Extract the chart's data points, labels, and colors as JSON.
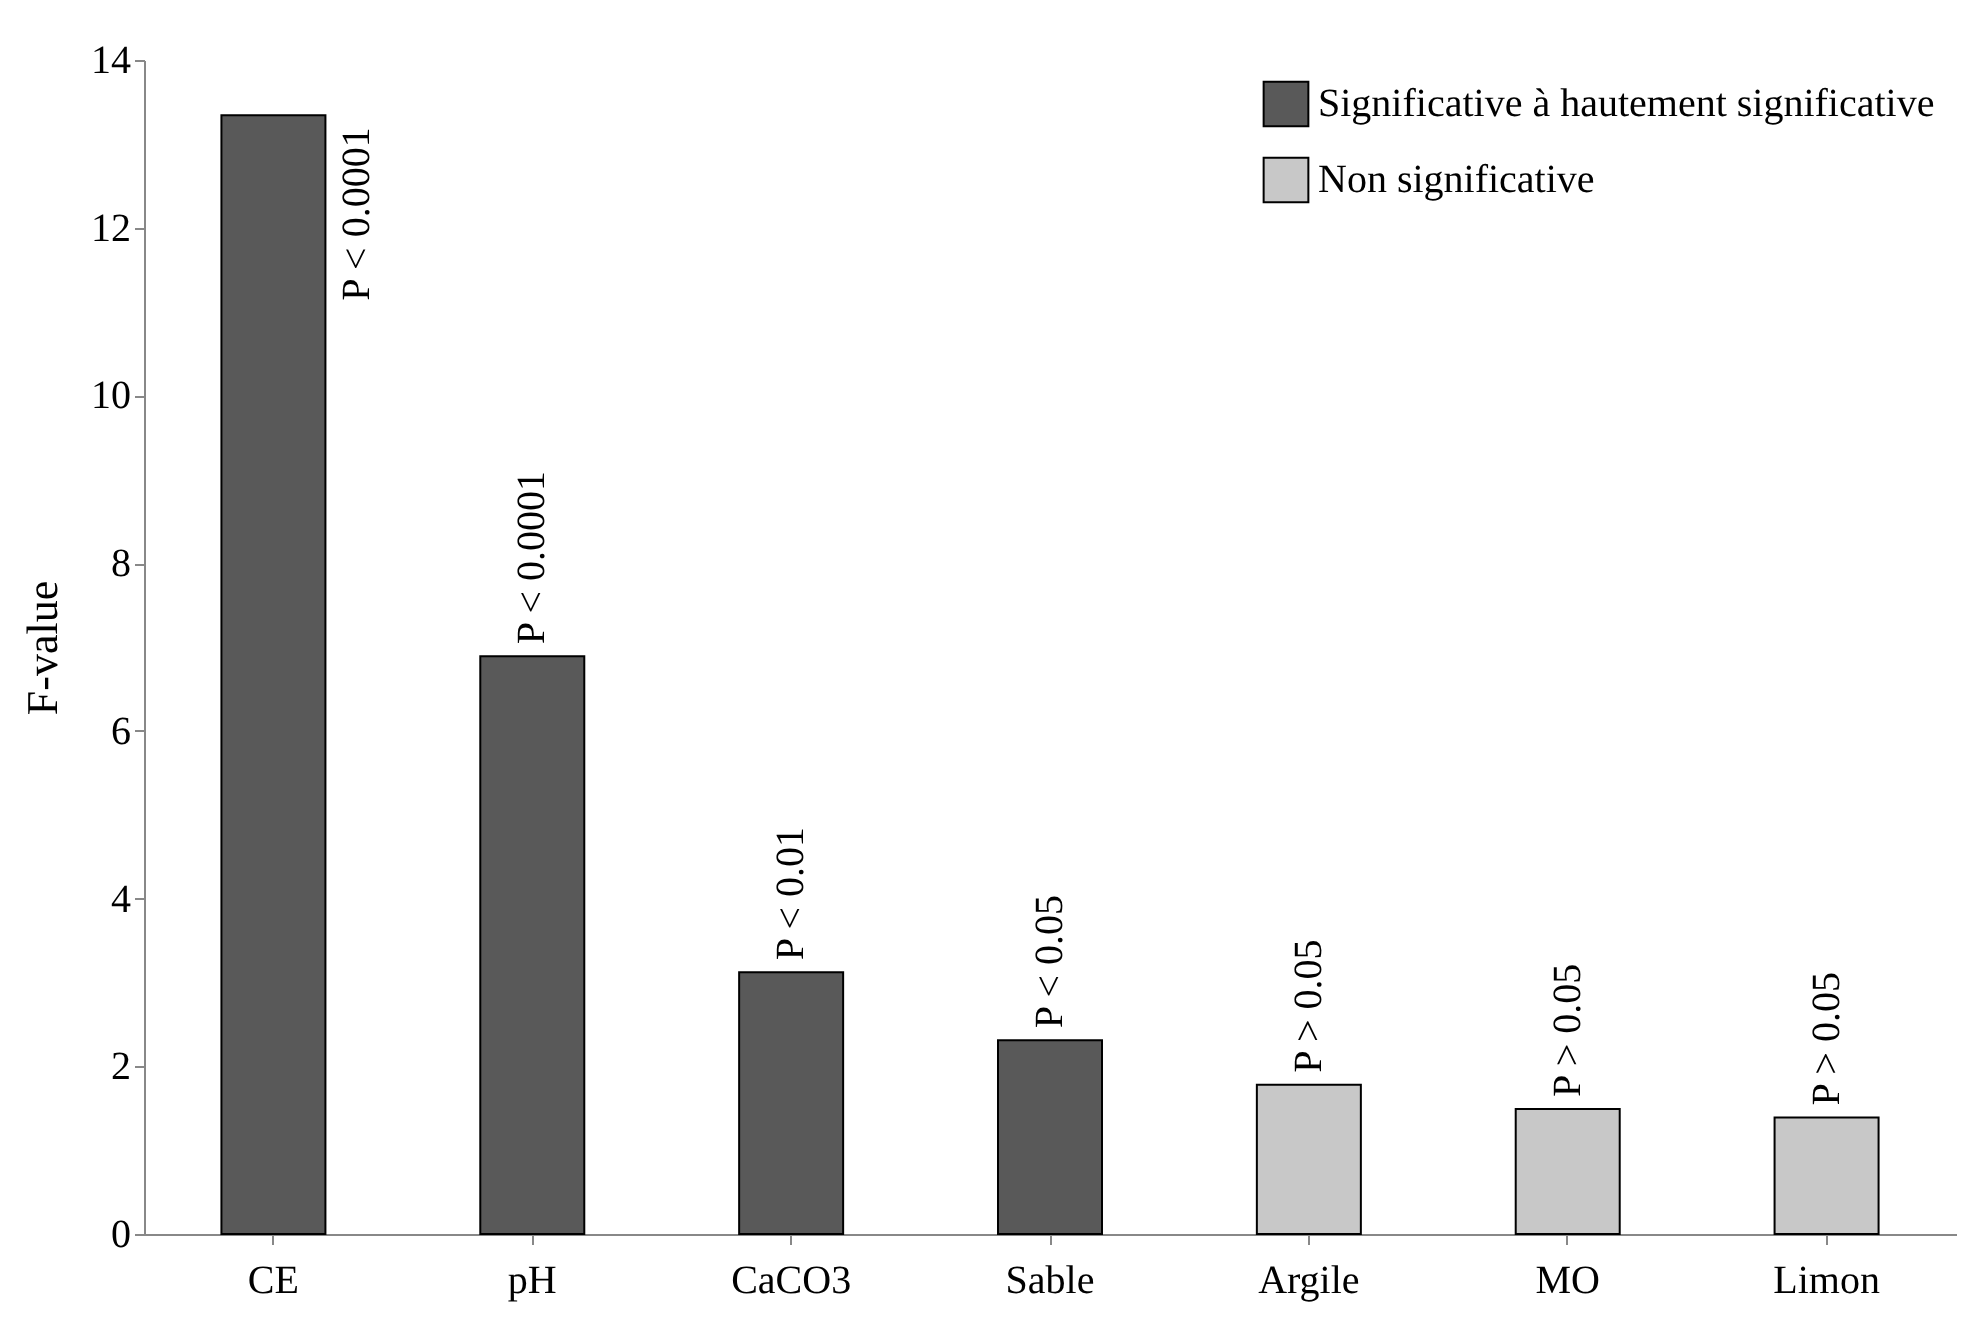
{
  "chart_data": {
    "type": "bar",
    "ylabel": "F-value",
    "categories": [
      "CE",
      "pH",
      "CaCO3",
      "Sable",
      "Argile",
      "MO",
      "Limon"
    ],
    "series": [
      {
        "name": "Significative à hautement significative",
        "color": "#595959",
        "values": [
          13.34,
          6.89,
          3.12,
          2.31,
          null,
          null,
          null
        ]
      },
      {
        "name": "Non significative",
        "color": "#c8c8c8",
        "values": [
          null,
          null,
          null,
          null,
          1.78,
          1.49,
          1.39
        ]
      }
    ],
    "value_labels": [
      "P < 0.0001",
      "P < 0.0001",
      "P < 0.01",
      "P < 0.05",
      "P > 0.05",
      "P > 0.05",
      "P > 0.05"
    ],
    "ylim": [
      0,
      14
    ],
    "yticks": [
      0,
      2,
      4,
      6,
      8,
      10,
      12,
      14
    ],
    "grid": false,
    "legend": "top right"
  }
}
